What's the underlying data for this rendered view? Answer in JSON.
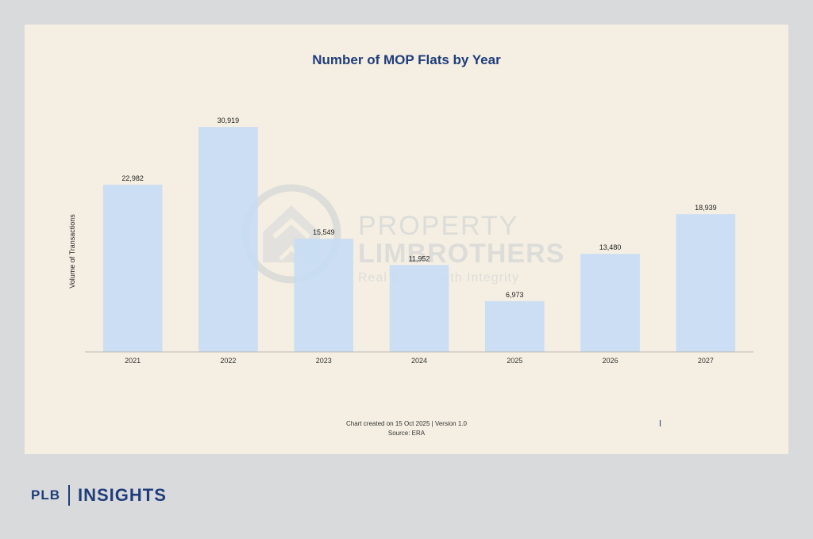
{
  "chart_data": {
    "type": "bar",
    "title": "Number of MOP Flats by Year",
    "xlabel": "",
    "ylabel": "Volume of Transactions",
    "categories": [
      "2021",
      "2022",
      "2023",
      "2024",
      "2025",
      "2026",
      "2027"
    ],
    "values": [
      22982,
      30919,
      15549,
      11952,
      6973,
      13480,
      18939
    ],
    "value_labels": [
      "22,982",
      "30,919",
      "15,549",
      "11,952",
      "6,973",
      "13,480",
      "18,939"
    ],
    "ylim": [
      0,
      33000
    ],
    "grid": false,
    "legend": "none",
    "bar_color": "#c7dcf4",
    "title_color": "#1f3d7a"
  },
  "footer": {
    "created": "Chart created on 15 Oct 2025 | Version 1.0",
    "source": "Source: ERA"
  },
  "watermark": {
    "line1": "PROPERTY",
    "line2": "LIMBROTHERS",
    "tagline": "Real Estate with Integrity"
  },
  "brand": {
    "short": "PLB",
    "section": "INSIGHTS"
  }
}
